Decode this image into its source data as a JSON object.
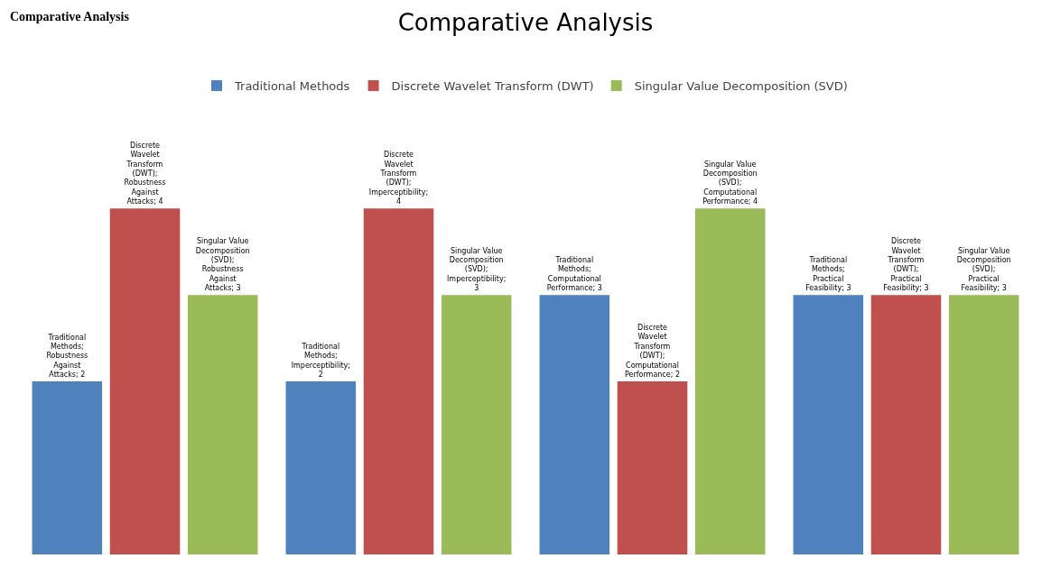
{
  "chart_data": {
    "type": "bar",
    "title": "Comparative Analysis",
    "annotations": [
      "Comparative Analysis"
    ],
    "categories": [
      null,
      null,
      null,
      null
    ],
    "series": [
      {
        "name": "Traditional Methods",
        "color": "#4f81bd",
        "values": [
          2,
          2,
          3,
          3
        ],
        "value_labels": [
          "Traditional Methods; Robustness Against Attacks; 2",
          "Traditional Methods; Imperceptibility; 2",
          "Traditional Methods; Computational Performance; 3",
          "Traditional Methods; Practical Feasibility; 3"
        ]
      },
      {
        "name": "Discrete Wavelet Transform (DWT)",
        "color": "#c0504d",
        "values": [
          4,
          4,
          2,
          3
        ],
        "value_labels": [
          "Discrete Wavelet Transform (DWT); Robustness Against Attacks; 4",
          "Discrete Wavelet Transform (DWT); Imperceptibility; 4",
          "Discrete Wavelet Transform (DWT); Computational Performance; 2",
          "Discrete Wavelet Transform (DWT); Practical Feasibility; 3"
        ]
      },
      {
        "name": "Singular Value Decomposition (SVD)",
        "color": "#9bbb59",
        "values": [
          3,
          3,
          4,
          3
        ],
        "value_labels": [
          "Singular Value Decomposition (SVD); Robustness Against Attacks; 3",
          "Singular Value Decomposition (SVD); Imperceptibility; 3",
          "Singular Value Decomposition (SVD); Computational Performance; 4",
          "Singular Value Decomposition (SVD); Practical Feasibility; 3"
        ]
      }
    ],
    "grid": false,
    "legend": "top",
    "tick_labels": false
  }
}
